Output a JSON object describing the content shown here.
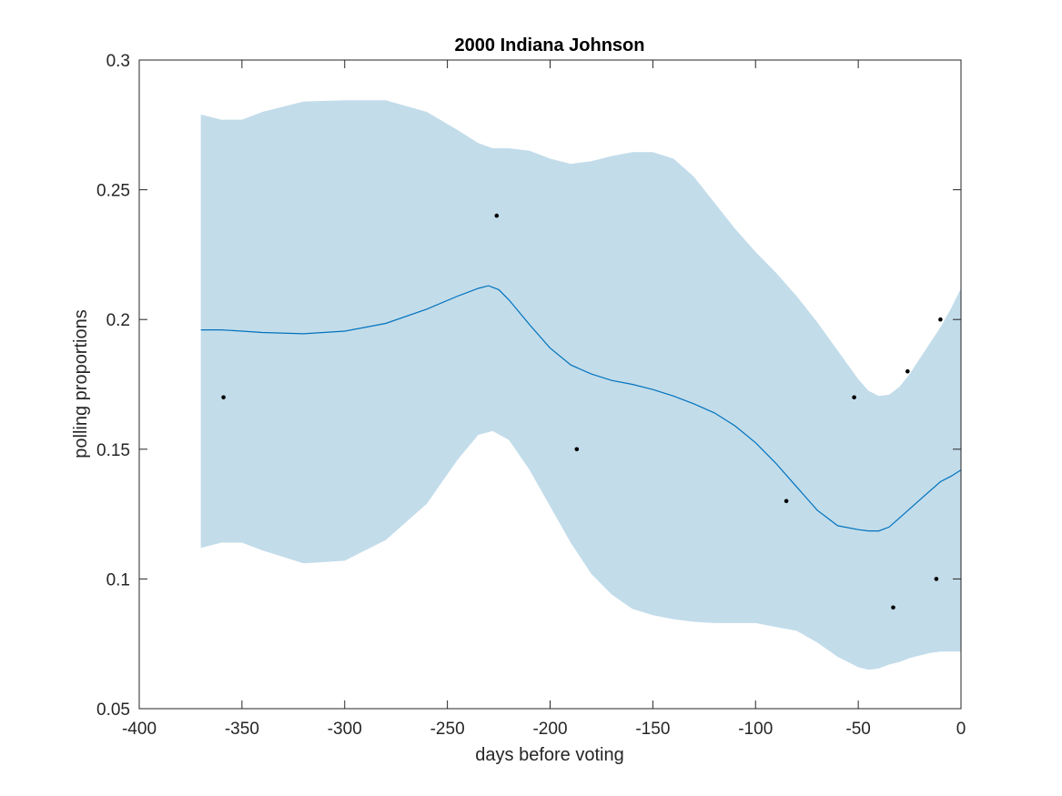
{
  "chart_data": {
    "type": "line",
    "title": "2000 Indiana Johnson",
    "xlabel": "days before voting",
    "ylabel": "polling proportions",
    "xlim": [
      -400,
      0
    ],
    "ylim": [
      0.05,
      0.3
    ],
    "xticks": [
      -400,
      -350,
      -300,
      -250,
      -200,
      -150,
      -100,
      -50,
      0
    ],
    "yticks": [
      0.05,
      0.1,
      0.15,
      0.2,
      0.25,
      0.3
    ],
    "xtick_labels": [
      "-400",
      "-350",
      "-300",
      "-250",
      "-200",
      "-150",
      "-100",
      "-50",
      "0"
    ],
    "ytick_labels": [
      "0.05",
      "0.1",
      "0.15",
      "0.2",
      "0.25",
      "0.3"
    ],
    "grid": false,
    "legend": "none",
    "colors": {
      "band": "#c2dcea",
      "line": "#0072bd",
      "points": "#000000",
      "axes": "#262626"
    },
    "band": {
      "x": [
        -370,
        -360,
        -350,
        -340,
        -320,
        -300,
        -280,
        -260,
        -245,
        -235,
        -228,
        -220,
        -210,
        -200,
        -190,
        -180,
        -170,
        -160,
        -150,
        -140,
        -130,
        -120,
        -110,
        -100,
        -90,
        -80,
        -70,
        -60,
        -50,
        -45,
        -40,
        -35,
        -30,
        -25,
        -20,
        -15,
        -10,
        -5,
        0
      ],
      "upper": [
        0.279,
        0.277,
        0.277,
        0.28,
        0.284,
        0.2845,
        0.2845,
        0.28,
        0.273,
        0.268,
        0.266,
        0.266,
        0.265,
        0.262,
        0.26,
        0.261,
        0.263,
        0.2645,
        0.2645,
        0.262,
        0.255,
        0.245,
        0.235,
        0.226,
        0.218,
        0.209,
        0.199,
        0.188,
        0.177,
        0.1725,
        0.1705,
        0.171,
        0.174,
        0.179,
        0.185,
        0.191,
        0.197,
        0.204,
        0.212
      ],
      "lower": [
        0.112,
        0.114,
        0.114,
        0.111,
        0.106,
        0.107,
        0.115,
        0.129,
        0.146,
        0.1555,
        0.157,
        0.1535,
        0.142,
        0.128,
        0.114,
        0.102,
        0.094,
        0.0885,
        0.086,
        0.0845,
        0.0835,
        0.083,
        0.083,
        0.083,
        0.0815,
        0.08,
        0.0755,
        0.07,
        0.066,
        0.065,
        0.0655,
        0.067,
        0.068,
        0.0695,
        0.0705,
        0.0715,
        0.072,
        0.072,
        0.072
      ]
    },
    "series": [
      {
        "x": [
          -370,
          -360,
          -350,
          -340,
          -320,
          -300,
          -280,
          -260,
          -245,
          -235,
          -230,
          -225,
          -220,
          -210,
          -200,
          -190,
          -180,
          -170,
          -160,
          -150,
          -140,
          -130,
          -120,
          -110,
          -100,
          -90,
          -80,
          -70,
          -60,
          -50,
          -45,
          -40,
          -35,
          -30,
          -25,
          -20,
          -15,
          -10,
          -5,
          0
        ],
        "values": [
          0.196,
          0.196,
          0.1955,
          0.195,
          0.1945,
          0.1955,
          0.1985,
          0.204,
          0.209,
          0.212,
          0.213,
          0.2115,
          0.2075,
          0.198,
          0.189,
          0.1825,
          0.179,
          0.1765,
          0.175,
          0.173,
          0.1705,
          0.1675,
          0.164,
          0.159,
          0.1525,
          0.1445,
          0.1355,
          0.1265,
          0.1205,
          0.119,
          0.1185,
          0.1185,
          0.12,
          0.1235,
          0.127,
          0.1305,
          0.134,
          0.1375,
          0.1395,
          0.142
        ]
      }
    ],
    "points": {
      "x": [
        -359,
        -226,
        -187,
        -85,
        -52,
        -33,
        -26,
        -12,
        -10
      ],
      "y": [
        0.17,
        0.24,
        0.15,
        0.13,
        0.17,
        0.089,
        0.18,
        0.1,
        0.2
      ]
    }
  }
}
